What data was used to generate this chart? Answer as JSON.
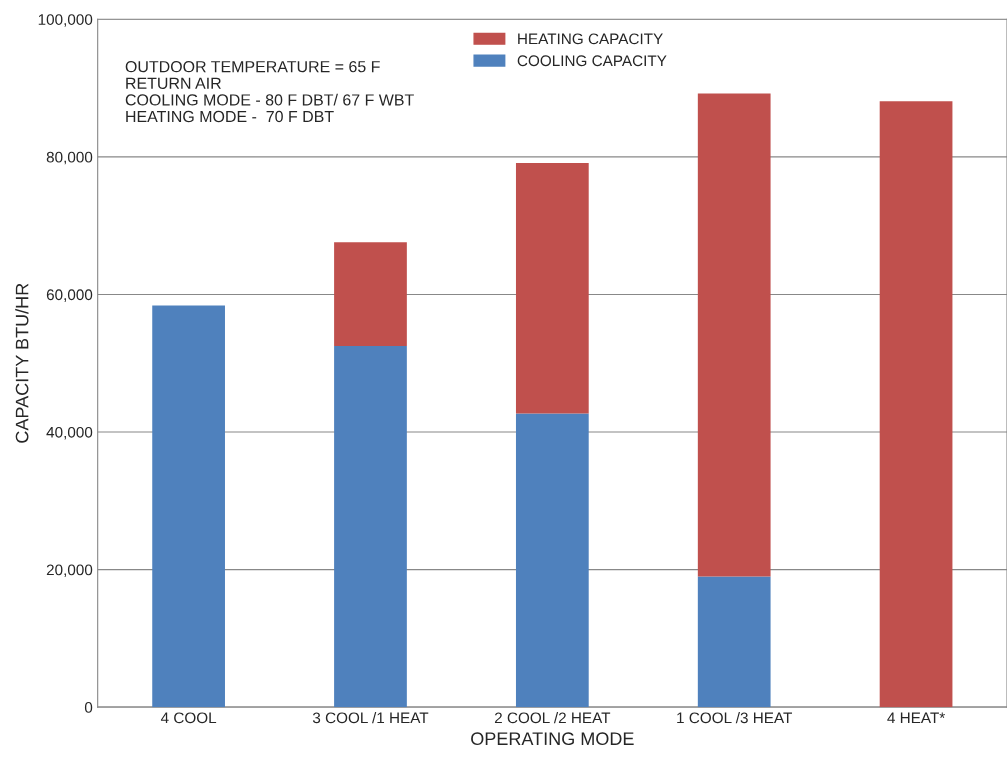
{
  "chart_data": {
    "type": "bar",
    "stacked": true,
    "xlabel": "OPERATING MODE",
    "ylabel": "CAPACITY BTU/HR",
    "categories": [
      "4 COOL",
      "3 COOL /1 HEAT",
      "2 COOL /2 HEAT",
      "1 COOL /3 HEAT",
      "4 HEAT*"
    ],
    "series": [
      {
        "name": "COOLING CAPACITY",
        "color": "#4f81bd",
        "values": [
          58400,
          52500,
          42700,
          19000,
          null
        ]
      },
      {
        "name": "HEATING CAPACITY",
        "color": "#c0504d",
        "values": [
          null,
          15100,
          36400,
          70200,
          88100
        ]
      }
    ],
    "ylim": [
      0,
      100000
    ],
    "yticks": [
      0,
      {
        "value": 20000,
        "label": "20,000"
      },
      {
        "value": 40000,
        "label": "40,000"
      },
      {
        "value": 60000,
        "label": "60,000"
      },
      {
        "value": 80000,
        "label": "80,000"
      },
      {
        "value": 100000,
        "label": "100,000"
      }
    ],
    "grid": "y",
    "legend": "top",
    "annotations": [
      "OUTDOOR TEMPERATURE = 65 F\nRETURN AIR\nCOOLING MODE - 80 F DBT/ 67 F WBT\nHEATING MODE -  70 F DBT"
    ]
  }
}
